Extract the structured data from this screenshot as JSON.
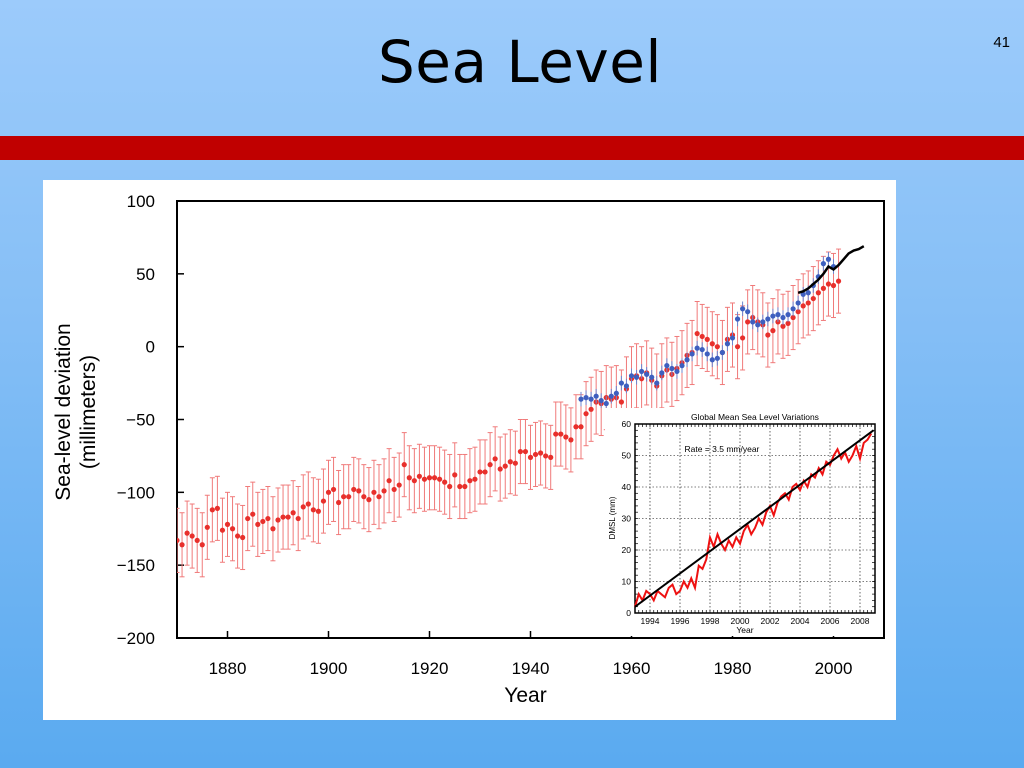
{
  "slide": {
    "title": "Sea Level",
    "number": "41"
  },
  "colors": {
    "background_top": "#9ccbfb",
    "background_bottom": "#5aaaf0",
    "band": "#c00000",
    "tide_gauge": "#e8302c",
    "error_bar": "#f07a7a",
    "alt_reconstruction": "#3e5fbf",
    "satellite": "#000000",
    "inset_series": "#ee1111"
  },
  "chart_data": [
    {
      "type": "scatter",
      "title": "",
      "xlabel": "Year",
      "ylabel_lines": [
        "Sea-level deviation",
        "(millimeters)"
      ],
      "xlim": [
        1870,
        2010
      ],
      "ylim": [
        -200,
        100
      ],
      "xticks": [
        1880,
        1900,
        1920,
        1940,
        1960,
        1980,
        2000
      ],
      "xtick_labels": [
        "1880",
        "1900",
        "1920",
        "1940",
        "1960",
        "1980",
        "2000"
      ],
      "yticks": [
        100,
        50,
        0,
        -50,
        -100,
        -150,
        -200
      ],
      "ytick_labels": [
        "100",
        "50",
        "0",
        "−50",
        "−100",
        "−150",
        "−200"
      ],
      "grid": false,
      "series": [
        {
          "kind": "points-with-errorbars",
          "x": [
            1870,
            1871,
            1872,
            1873,
            1874,
            1875,
            1876,
            1877,
            1878,
            1879,
            1880,
            1881,
            1882,
            1883,
            1884,
            1885,
            1886,
            1887,
            1888,
            1889,
            1890,
            1891,
            1892,
            1893,
            1894,
            1895,
            1896,
            1897,
            1898,
            1899,
            1900,
            1901,
            1902,
            1903,
            1904,
            1905,
            1906,
            1907,
            1908,
            1909,
            1910,
            1911,
            1912,
            1913,
            1914,
            1915,
            1916,
            1917,
            1918,
            1919,
            1920,
            1921,
            1922,
            1923,
            1924,
            1925,
            1926,
            1927,
            1928,
            1929,
            1930,
            1931,
            1932,
            1933,
            1934,
            1935,
            1936,
            1937,
            1938,
            1939,
            1940,
            1941,
            1942,
            1943,
            1944,
            1945,
            1946,
            1947,
            1948,
            1949,
            1950,
            1951,
            1952,
            1953,
            1954,
            1955,
            1956,
            1957,
            1958,
            1959,
            1960,
            1961,
            1962,
            1963,
            1964,
            1965,
            1966,
            1967,
            1968,
            1969,
            1970,
            1971,
            1972,
            1973,
            1974,
            1975,
            1976,
            1977,
            1978,
            1979,
            1980,
            1981,
            1982,
            1983,
            1984,
            1985,
            1986,
            1987,
            1988,
            1989,
            1990,
            1991,
            1992,
            1993,
            1994,
            1995,
            1996,
            1997,
            1998,
            1999,
            2000,
            2001
          ],
          "y": [
            -133,
            -136,
            -128,
            -130,
            -133,
            -136,
            -124,
            -112,
            -111,
            -126,
            -122,
            -125,
            -130,
            -131,
            -118,
            -115,
            -122,
            -120,
            -118,
            -125,
            -119,
            -117,
            -117,
            -114,
            -118,
            -110,
            -108,
            -112,
            -113,
            -106,
            -100,
            -98,
            -107,
            -103,
            -103,
            -98,
            -99,
            -103,
            -105,
            -100,
            -103,
            -99,
            -92,
            -98,
            -95,
            -81,
            -90,
            -92,
            -89,
            -91,
            -90,
            -90,
            -91,
            -93,
            -96,
            -88,
            -96,
            -96,
            -92,
            -91,
            -86,
            -86,
            -81,
            -77,
            -84,
            -82,
            -79,
            -80,
            -72,
            -72,
            -76,
            -74,
            -73,
            -75,
            -76,
            -60,
            -60,
            -62,
            -64,
            -55,
            -55,
            -46,
            -43,
            -38,
            -39,
            -35,
            -36,
            -35,
            -38,
            -29,
            -22,
            -20,
            -22,
            -18,
            -23,
            -27,
            -20,
            -16,
            -19,
            -15,
            -11,
            -6,
            -4,
            9,
            7,
            5,
            2,
            0,
            -4,
            5,
            8,
            0,
            6,
            17,
            20,
            17,
            15,
            8,
            11,
            17,
            14,
            16,
            20,
            24,
            28,
            30,
            33,
            37,
            40,
            43,
            42,
            45
          ],
          "error": 22
        },
        {
          "kind": "reconstruction-points",
          "x": [
            1950,
            1951,
            1952,
            1953,
            1954,
            1955,
            1956,
            1957,
            1958,
            1959,
            1960,
            1961,
            1962,
            1963,
            1964,
            1965,
            1966,
            1967,
            1968,
            1969,
            1970,
            1971,
            1972,
            1973,
            1974,
            1975,
            1976,
            1977,
            1978,
            1979,
            1980,
            1981,
            1982,
            1983,
            1984,
            1985,
            1986,
            1987,
            1988,
            1989,
            1990,
            1991,
            1992,
            1993,
            1994,
            1995,
            1996,
            1997,
            1998,
            1999,
            2000
          ],
          "y": [
            -36,
            -35,
            -36,
            -34,
            -37,
            -39,
            -34,
            -32,
            -25,
            -27,
            -20,
            -21,
            -17,
            -19,
            -21,
            -25,
            -18,
            -13,
            -15,
            -17,
            -13,
            -9,
            -5,
            -1,
            -2,
            -5,
            -9,
            -8,
            -4,
            2,
            6,
            19,
            26,
            24,
            17,
            15,
            17,
            19,
            21,
            22,
            20,
            22,
            26,
            30,
            36,
            37,
            42,
            48,
            57,
            60,
            55
          ],
          "error": 5
        },
        {
          "kind": "line",
          "x": [
            1993,
            1994,
            1995,
            1996,
            1997,
            1998,
            1999,
            2000,
            2001,
            2002,
            2003,
            2004,
            2005,
            2006
          ],
          "y": [
            37,
            38,
            40,
            43,
            46,
            50,
            55,
            53,
            56,
            60,
            64,
            66,
            67,
            69
          ]
        }
      ]
    },
    {
      "type": "line",
      "title": "Global Mean Sea Level Variations",
      "xlabel": "Year",
      "ylabel": "DMSL (mm)",
      "annotation": "Rate = 3.5 mm/year",
      "xlim": [
        1993,
        2009
      ],
      "ylim": [
        0,
        60
      ],
      "xticks": [
        1994,
        1996,
        1998,
        2000,
        2002,
        2004,
        2006,
        2008
      ],
      "xtick_labels": [
        "1994",
        "1996",
        "1998",
        "2000",
        "2002",
        "2004",
        "2006",
        "2008"
      ],
      "yticks": [
        0,
        10,
        20,
        30,
        40,
        50,
        60
      ],
      "ytick_labels": [
        "0",
        "10",
        "20",
        "30",
        "40",
        "50",
        "60"
      ],
      "grid": "dotted",
      "series": [
        {
          "kind": "measured",
          "x": [
            1993.0,
            1993.25,
            1993.5,
            1993.75,
            1994.0,
            1994.25,
            1994.5,
            1994.75,
            1995.0,
            1995.25,
            1995.5,
            1995.75,
            1996.0,
            1996.25,
            1996.5,
            1996.75,
            1997.0,
            1997.25,
            1997.5,
            1997.75,
            1998.0,
            1998.25,
            1998.5,
            1998.75,
            1999.0,
            1999.25,
            1999.5,
            1999.75,
            2000.0,
            2000.25,
            2000.5,
            2000.75,
            2001.0,
            2001.25,
            2001.5,
            2001.75,
            2002.0,
            2002.25,
            2002.5,
            2002.75,
            2003.0,
            2003.25,
            2003.5,
            2003.75,
            2004.0,
            2004.25,
            2004.5,
            2004.75,
            2005.0,
            2005.25,
            2005.5,
            2005.75,
            2006.0,
            2006.25,
            2006.5,
            2006.75,
            2007.0,
            2007.25,
            2007.5,
            2007.75,
            2008.0,
            2008.25,
            2008.5,
            2008.75
          ],
          "y": [
            2,
            6,
            4,
            7,
            6,
            4,
            7,
            6,
            5,
            8,
            9,
            6,
            7,
            10,
            8,
            11,
            8,
            15,
            14,
            17,
            24,
            21,
            25,
            22,
            20,
            23,
            21,
            24,
            22,
            26,
            28,
            25,
            27,
            30,
            28,
            32,
            34,
            31,
            35,
            37,
            38,
            36,
            40,
            41,
            39,
            42,
            40,
            44,
            43,
            46,
            44,
            48,
            47,
            50,
            52,
            49,
            51,
            48,
            50,
            53,
            49,
            54,
            55,
            57
          ]
        },
        {
          "kind": "trend",
          "x": [
            1993.0,
            2008.9
          ],
          "y": [
            2,
            58
          ]
        }
      ]
    }
  ]
}
